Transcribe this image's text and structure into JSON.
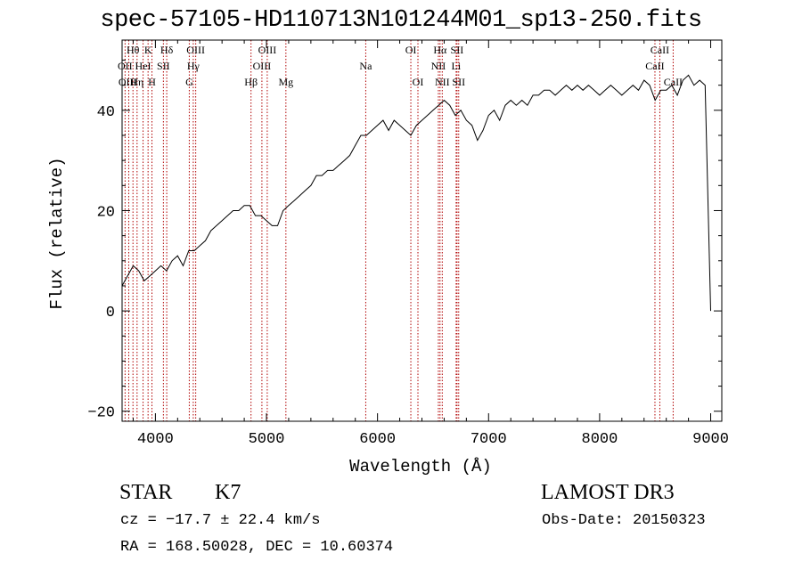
{
  "chart_data": {
    "type": "line",
    "title": "spec-57105-HD110713N101244M01_sp13-250.fits",
    "xlabel": "Wavelength (Å)",
    "ylabel": "Flux (relative)",
    "xlim": [
      3700,
      9100
    ],
    "ylim": [
      -22,
      54
    ],
    "xticks": [
      4000,
      5000,
      6000,
      7000,
      8000,
      9000
    ],
    "xtick_labels": [
      "4000",
      "5000",
      "6000",
      "7000",
      "8000",
      "9000"
    ],
    "yticks": [
      -20,
      0,
      20,
      40
    ],
    "ytick_labels": [
      "−20",
      "0",
      "20",
      "40"
    ],
    "series": [
      {
        "name": "spectrum",
        "x": [
          3700,
          3750,
          3800,
          3850,
          3900,
          3950,
          4000,
          4050,
          4100,
          4150,
          4200,
          4250,
          4300,
          4350,
          4400,
          4450,
          4500,
          4550,
          4600,
          4650,
          4700,
          4750,
          4800,
          4850,
          4900,
          4950,
          5000,
          5050,
          5100,
          5150,
          5200,
          5250,
          5300,
          5350,
          5400,
          5450,
          5500,
          5550,
          5600,
          5650,
          5700,
          5750,
          5800,
          5850,
          5900,
          5950,
          6000,
          6050,
          6100,
          6150,
          6200,
          6250,
          6300,
          6350,
          6400,
          6450,
          6500,
          6550,
          6600,
          6650,
          6700,
          6750,
          6800,
          6850,
          6900,
          6950,
          7000,
          7050,
          7100,
          7150,
          7200,
          7250,
          7300,
          7350,
          7400,
          7450,
          7500,
          7550,
          7600,
          7650,
          7700,
          7750,
          7800,
          7850,
          7900,
          7950,
          8000,
          8050,
          8100,
          8150,
          8200,
          8250,
          8300,
          8350,
          8400,
          8450,
          8500,
          8550,
          8600,
          8650,
          8700,
          8750,
          8800,
          8850,
          8900,
          8950,
          9000
        ],
        "y": [
          5,
          7,
          9,
          8,
          6,
          7,
          8,
          9,
          8,
          10,
          11,
          9,
          12,
          12,
          13,
          14,
          16,
          17,
          18,
          19,
          20,
          20,
          21,
          21,
          19,
          19,
          18,
          17,
          17,
          20,
          21,
          22,
          23,
          24,
          25,
          27,
          27,
          28,
          28,
          29,
          30,
          31,
          33,
          35,
          35,
          36,
          37,
          38,
          36,
          38,
          37,
          36,
          35,
          37,
          38,
          39,
          40,
          41,
          42,
          41,
          39,
          40,
          38,
          37,
          34,
          36,
          39,
          40,
          38,
          41,
          42,
          41,
          42,
          41,
          43,
          43,
          44,
          44,
          43,
          44,
          45,
          44,
          45,
          44,
          45,
          44,
          43,
          44,
          45,
          44,
          43,
          44,
          45,
          44,
          46,
          45,
          42,
          44,
          44,
          45,
          43,
          46,
          47,
          45,
          46,
          45,
          0
        ]
      }
    ],
    "lines": [
      {
        "name": "Hθ",
        "x": 3798
      },
      {
        "name": "OII",
        "x": 3727
      },
      {
        "name": "OIII",
        "x": 3760
      },
      {
        "name": "K",
        "x": 3934
      },
      {
        "name": "H",
        "x": 3969
      },
      {
        "name": "HeI",
        "x": 3889
      },
      {
        "name": "Hη",
        "x": 3835
      },
      {
        "name": "SII",
        "x": 4072
      },
      {
        "name": "Hδ",
        "x": 4102
      },
      {
        "name": "OIII",
        "x": 4363
      },
      {
        "name": "Hγ",
        "x": 4341
      },
      {
        "name": "G",
        "x": 4305
      },
      {
        "name": "Hβ",
        "x": 4861
      },
      {
        "name": "OIII",
        "x": 4959
      },
      {
        "name": "OIII",
        "x": 5007
      },
      {
        "name": "Mg",
        "x": 5175
      },
      {
        "name": "Na",
        "x": 5894
      },
      {
        "name": "OI",
        "x": 6300
      },
      {
        "name": "OI",
        "x": 6364
      },
      {
        "name": "Hα",
        "x": 6563
      },
      {
        "name": "NII",
        "x": 6548
      },
      {
        "name": "NII",
        "x": 6583
      },
      {
        "name": "SII",
        "x": 6716
      },
      {
        "name": "SII",
        "x": 6731
      },
      {
        "name": "Li",
        "x": 6708
      },
      {
        "name": "CaII",
        "x": 8498
      },
      {
        "name": "CaII",
        "x": 8542
      },
      {
        "name": "CaII",
        "x": 8662
      }
    ],
    "line_labels": [
      {
        "text": "Hθ",
        "x": 3798,
        "row": 0
      },
      {
        "text": "OII",
        "x": 3727,
        "row": 1
      },
      {
        "text": "OIII",
        "x": 3750,
        "row": 2
      },
      {
        "text": "K",
        "x": 3934,
        "row": 0
      },
      {
        "text": "HeI",
        "x": 3889,
        "row": 1
      },
      {
        "text": "Hη",
        "x": 3835,
        "row": 2
      },
      {
        "text": "H",
        "x": 3969,
        "row": 2
      },
      {
        "text": "Hδ",
        "x": 4102,
        "row": 0
      },
      {
        "text": "SII",
        "x": 4072,
        "row": 1
      },
      {
        "text": "OIII",
        "x": 4363,
        "row": 0
      },
      {
        "text": "Hγ",
        "x": 4341,
        "row": 1
      },
      {
        "text": "G",
        "x": 4305,
        "row": 2
      },
      {
        "text": "OIII",
        "x": 5007,
        "row": 0
      },
      {
        "text": "OIII",
        "x": 4959,
        "row": 1
      },
      {
        "text": "Hβ",
        "x": 4861,
        "row": 2
      },
      {
        "text": "Mg",
        "x": 5175,
        "row": 2
      },
      {
        "text": "Na",
        "x": 5894,
        "row": 1
      },
      {
        "text": "OI",
        "x": 6300,
        "row": 0
      },
      {
        "text": "OI",
        "x": 6364,
        "row": 2
      },
      {
        "text": "Hα",
        "x": 6563,
        "row": 0
      },
      {
        "text": "SII",
        "x": 6716,
        "row": 0
      },
      {
        "text": "NII",
        "x": 6548,
        "row": 1
      },
      {
        "text": "Li",
        "x": 6708,
        "row": 1
      },
      {
        "text": "NII",
        "x": 6583,
        "row": 2
      },
      {
        "text": "SII",
        "x": 6731,
        "row": 2
      },
      {
        "text": "CaII",
        "x": 8542,
        "row": 0
      },
      {
        "text": "CaII",
        "x": 8498,
        "row": 1
      },
      {
        "text": "CaII",
        "x": 8662,
        "row": 2
      }
    ]
  },
  "info": {
    "class": "STAR",
    "subclass": "K7",
    "survey": "LAMOST DR3",
    "cz": "cz = −17.7 ± 22.4 km/s",
    "obs_date": "Obs-Date: 20150323",
    "coords": "RA = 168.50028, DEC =  10.60374"
  },
  "colors": {
    "line_marker": "#b00000",
    "spectrum": "#000000"
  }
}
